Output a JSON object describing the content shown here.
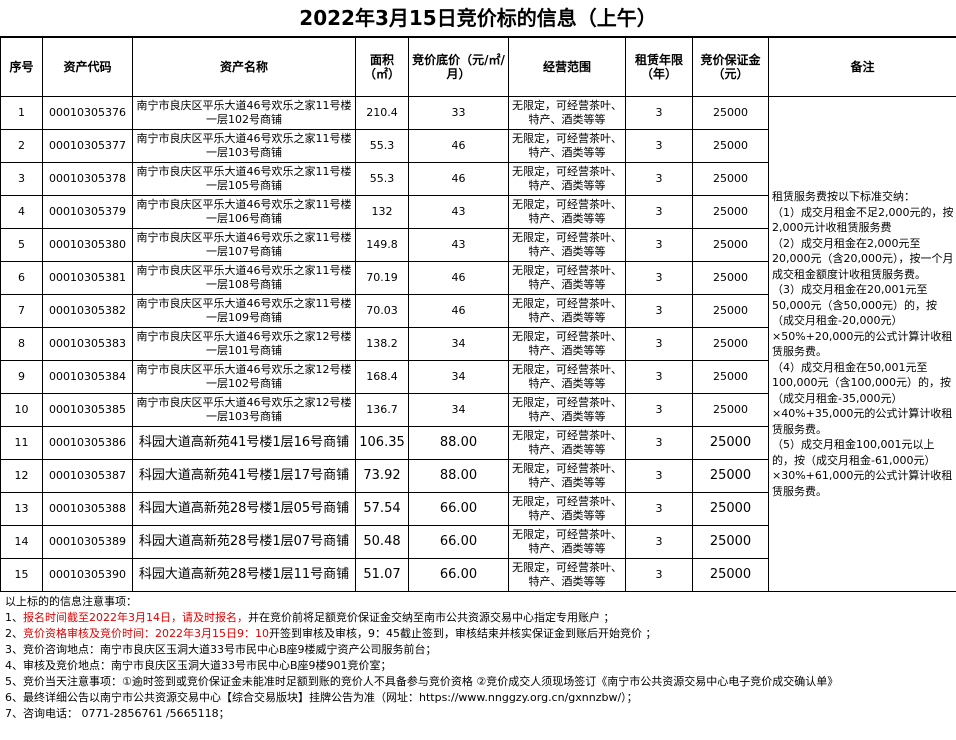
{
  "header": {
    "title": "2022年3月15日竞价标的信息（上午）"
  },
  "table": {
    "headers": [
      "序号",
      "资产代码",
      "资产名称",
      "面积（㎡）",
      "竞价底价（元/㎡/月）",
      "经营范围",
      "租赁年限（年）",
      "竞价保证金（元）",
      "备注"
    ],
    "rows": [
      [
        "1",
        "00010305376",
        "南宁市良庆区平乐大道46号欢乐之家11号楼一层102号商铺",
        "210.4",
        "33",
        "无限定，可经营茶叶、特产、酒类等等",
        "3",
        "25000"
      ],
      [
        "2",
        "00010305377",
        "南宁市良庆区平乐大道46号欢乐之家11号楼一层103号商铺",
        "55.3",
        "46",
        "无限定，可经营茶叶、特产、酒类等等",
        "3",
        "25000"
      ],
      [
        "3",
        "00010305378",
        "南宁市良庆区平乐大道46号欢乐之家11号楼一层105号商铺",
        "55.3",
        "46",
        "无限定，可经营茶叶、特产、酒类等等",
        "3",
        "25000"
      ],
      [
        "4",
        "00010305379",
        "南宁市良庆区平乐大道46号欢乐之家11号楼一层106号商铺",
        "132",
        "43",
        "无限定，可经营茶叶、特产、酒类等等",
        "3",
        "25000"
      ],
      [
        "5",
        "00010305380",
        "南宁市良庆区平乐大道46号欢乐之家11号楼一层107号商铺",
        "149.8",
        "43",
        "无限定，可经营茶叶、特产、酒类等等",
        "3",
        "25000"
      ],
      [
        "6",
        "00010305381",
        "南宁市良庆区平乐大道46号欢乐之家11号楼一层108号商铺",
        "70.19",
        "46",
        "无限定，可经营茶叶、特产、酒类等等",
        "3",
        "25000"
      ],
      [
        "7",
        "00010305382",
        "南宁市良庆区平乐大道46号欢乐之家11号楼一层109号商铺",
        "70.03",
        "46",
        "无限定，可经营茶叶、特产、酒类等等",
        "3",
        "25000"
      ],
      [
        "8",
        "00010305383",
        "南宁市良庆区平乐大道46号欢乐之家12号楼一层101号商铺",
        "138.2",
        "34",
        "无限定，可经营茶叶、特产、酒类等等",
        "3",
        "25000"
      ],
      [
        "9",
        "00010305384",
        "南宁市良庆区平乐大道46号欢乐之家12号楼一层102号商铺",
        "168.4",
        "34",
        "无限定，可经营茶叶、特产、酒类等等",
        "3",
        "25000"
      ],
      [
        "10",
        "00010305385",
        "南宁市良庆区平乐大道46号欢乐之家12号楼一层103号商铺",
        "136.7",
        "34",
        "无限定，可经营茶叶、特产、酒类等等",
        "3",
        "25000"
      ],
      [
        "11",
        "00010305386",
        "科园大道高新苑41号楼1层16号商铺",
        "106.35",
        "88.00",
        "无限定，可经营茶叶、特产、酒类等等",
        "3",
        "25000"
      ],
      [
        "12",
        "00010305387",
        "科园大道高新苑41号楼1层17号商铺",
        "73.92",
        "88.00",
        "无限定，可经营茶叶、特产、酒类等等",
        "3",
        "25000"
      ],
      [
        "13",
        "00010305388",
        "科园大道高新苑28号楼1层05号商铺",
        "57.54",
        "66.00",
        "无限定，可经营茶叶、特产、酒类等等",
        "3",
        "25000"
      ],
      [
        "14",
        "00010305389",
        "科园大道高新苑28号楼1层07号商铺",
        "50.48",
        "66.00",
        "无限定，可经营茶叶、特产、酒类等等",
        "3",
        "25000"
      ],
      [
        "15",
        "00010305390",
        "科园大道高新苑28号楼1层11号商铺",
        "51.07",
        "66.00",
        "无限定，可经营茶叶、特产、酒类等等",
        "3",
        "25000"
      ]
    ],
    "remarks": [
      "租赁服务费按以下标准交纳：",
      "（1）成交月租金不足2,000元的，按2,000元计收租赁服务费",
      "（2）成交月租金在2,000元至20,000元（含20,000元），按一个月成交租金额度计收租赁服务费。",
      "（3）成交月租金在20,001元至50,000元（含50,000元）的，按（成交月租金-20,000元）×50%+20,000元的公式计算计收租赁服务费。",
      "（4）成交月租金在50,001元至100,000元（含100,000元）的，按（成交月租金-35,000元）×40%+35,000元的公式计算计收租赁服务费。",
      "（5）成交月租金100,001元以上的，按（成交月租金-61,000元）×30%+61,000元的公式计算计收租赁服务费。"
    ]
  },
  "notes": {
    "lines": [
      [
        {
          "text": "以上标的的信息注意事项：",
          "color": "#000000"
        }
      ],
      [
        {
          "text": "1、",
          "color": "#000000"
        },
        {
          "text": "报名时间截至2022年3月14日，请及时报名，",
          "color": "#e00000"
        },
        {
          "text": "并在竞价前将足额竞价保证金交纳至南市公共资源交易中心指定专用账户 ；",
          "color": "#000000"
        }
      ],
      [
        {
          "text": "2、",
          "color": "#000000"
        },
        {
          "text": "竞价资格审核及竞价时间：2022年3月15日9：10",
          "color": "#e00000"
        },
        {
          "text": "开签到审核及审核，9：45截止签到，审核结束并核实保证金到账后开始竞价 ；",
          "color": "#000000"
        }
      ],
      [
        {
          "text": "3、竞价咨询地点：南宁市良庆区玉洞大道33号市民中心B座9楼威宁资产公司服务前台；",
          "color": "#000000"
        }
      ],
      [
        {
          "text": "4、审核及竞价地点：南宁市良庆区玉洞大道33号市民中心B座9楼901竞价室；",
          "color": "#000000"
        }
      ],
      [
        {
          "text": "5、竞价当天注意事项：①逾时签到或竞价保证金未能准时足额到账的竞价人不具备参与竞价资格 ②竞价成交人须现场签订《南宁市公共资源交易中心电子竞价成交确认单》",
          "color": "#000000"
        }
      ],
      [
        {
          "text": "6、最终详细公告以南宁市公共资源交易中心【综合交易版块】挂牌公告为准（网址：https://www.nnggzy.org.cn/gxnnzbw/）；",
          "color": "#000000"
        }
      ],
      [
        {
          "text": "7、咨询电话： 0771-2856761 /5665118；",
          "color": "#000000"
        }
      ]
    ]
  }
}
